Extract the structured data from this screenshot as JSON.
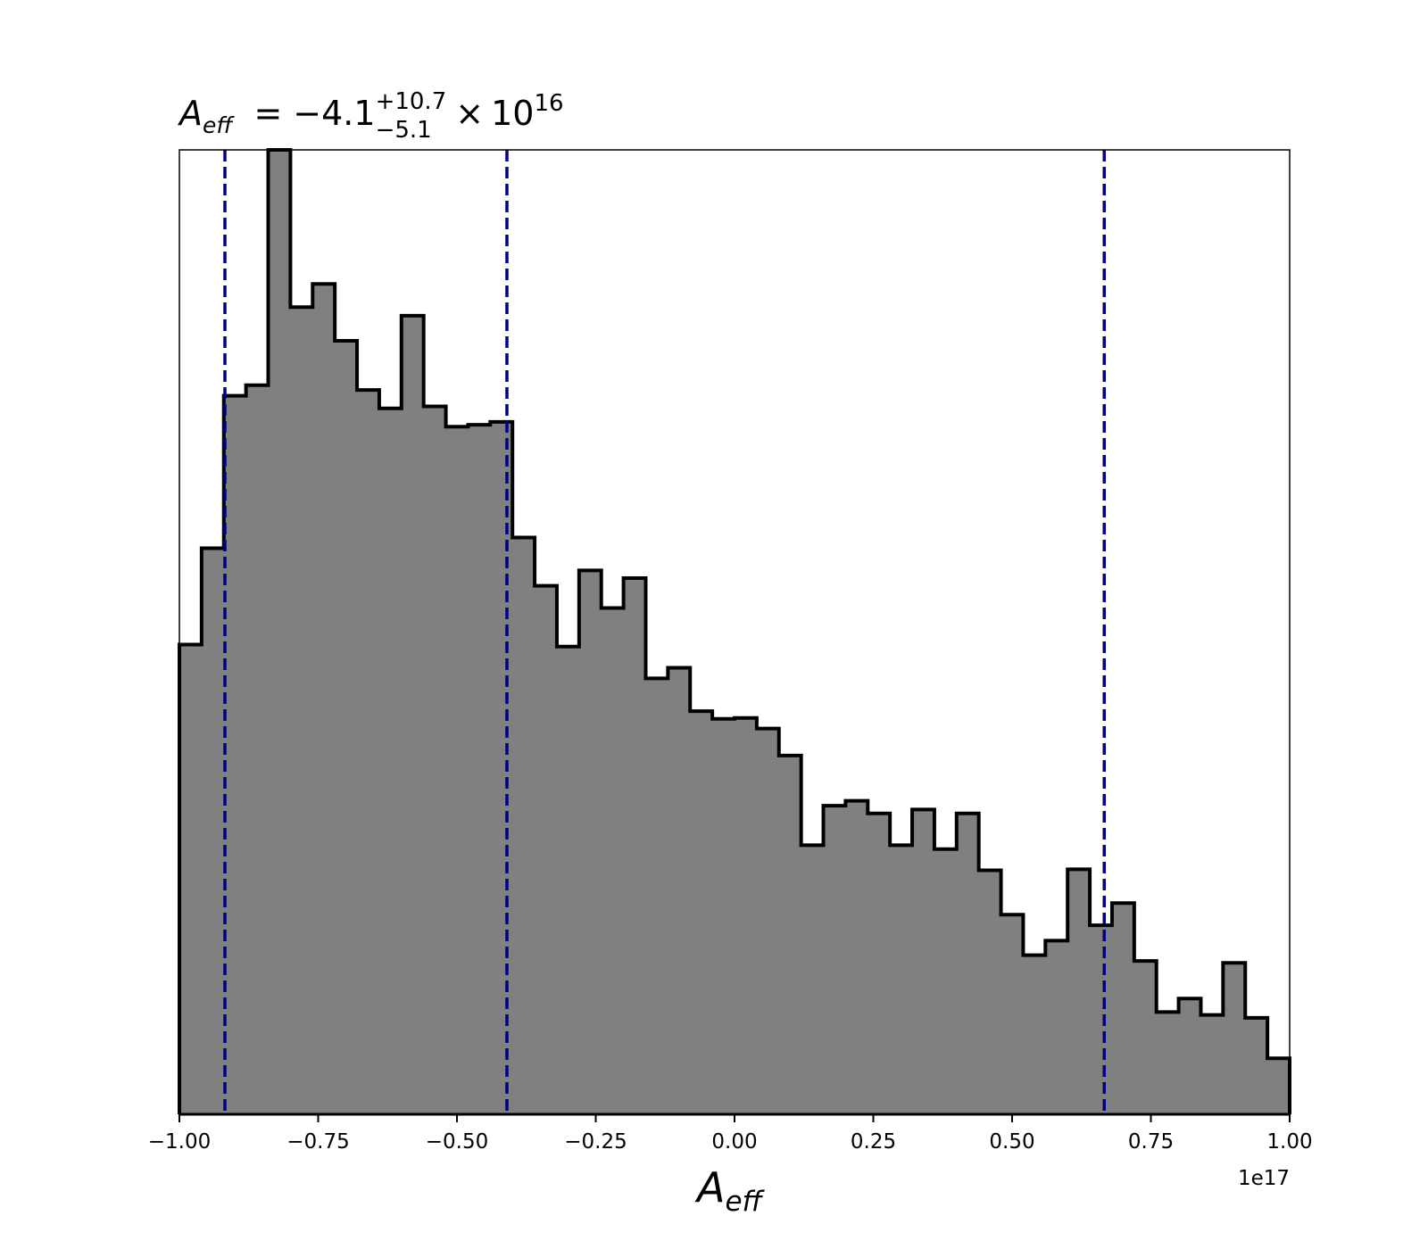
{
  "chart_data": {
    "type": "bar",
    "title": {
      "symbol": "A",
      "symbol_subscript": "eff",
      "equals": "=",
      "value": "−4.1",
      "upper_error": "+10.7",
      "lower_error": "−5.1",
      "times": "×",
      "base": "10",
      "exponent": "16"
    },
    "xlabel": {
      "symbol": "A",
      "subscript": "eff"
    },
    "ylabel": "",
    "offset_text": "1e17",
    "xlim": [
      -1.0,
      1.0
    ],
    "ylim": [
      0,
      100
    ],
    "x_ticks": [
      -1.0,
      -0.75,
      -0.5,
      -0.25,
      0.0,
      0.25,
      0.5,
      0.75,
      1.0
    ],
    "x_tick_labels": [
      "−1.00",
      "−0.75",
      "−0.50",
      "−0.25",
      "0.00",
      "0.25",
      "0.50",
      "0.75",
      "1.00"
    ],
    "y_ticks_visible": false,
    "grid": false,
    "bin_edges": [
      -1.0,
      -0.96,
      -0.92,
      -0.88,
      -0.84,
      -0.8,
      -0.76,
      -0.72,
      -0.68,
      -0.64,
      -0.6,
      -0.56,
      -0.52,
      -0.48,
      -0.44,
      -0.4,
      -0.36,
      -0.32,
      -0.28,
      -0.24,
      -0.2,
      -0.16,
      -0.12,
      -0.08,
      -0.04,
      0.0,
      0.04,
      0.08,
      0.12,
      0.16,
      0.2,
      0.24,
      0.28,
      0.32,
      0.36,
      0.4,
      0.44,
      0.48,
      0.52,
      0.56,
      0.6,
      0.64,
      0.68,
      0.72,
      0.76,
      0.8,
      0.84,
      0.88,
      0.92,
      0.96,
      1.0
    ],
    "values": [
      48.7,
      58.7,
      74.5,
      75.6,
      100.0,
      83.7,
      86.1,
      80.2,
      75.1,
      73.2,
      82.8,
      73.4,
      71.3,
      71.5,
      71.8,
      59.8,
      54.8,
      48.5,
      56.4,
      52.5,
      55.6,
      45.2,
      46.3,
      41.8,
      41.0,
      41.1,
      40.0,
      37.2,
      27.9,
      32.0,
      32.5,
      31.2,
      27.9,
      31.6,
      27.5,
      31.2,
      25.3,
      20.7,
      16.5,
      18.0,
      25.4,
      19.6,
      21.9,
      15.9,
      10.6,
      12.0,
      10.3,
      15.7,
      10.0,
      5.8
    ],
    "fill_color": "#808080",
    "edge_color": "#000000",
    "quantile_lines": {
      "x": [
        -0.918,
        -0.41,
        0.666
      ],
      "color": "#00007f",
      "style": "dashed"
    }
  }
}
